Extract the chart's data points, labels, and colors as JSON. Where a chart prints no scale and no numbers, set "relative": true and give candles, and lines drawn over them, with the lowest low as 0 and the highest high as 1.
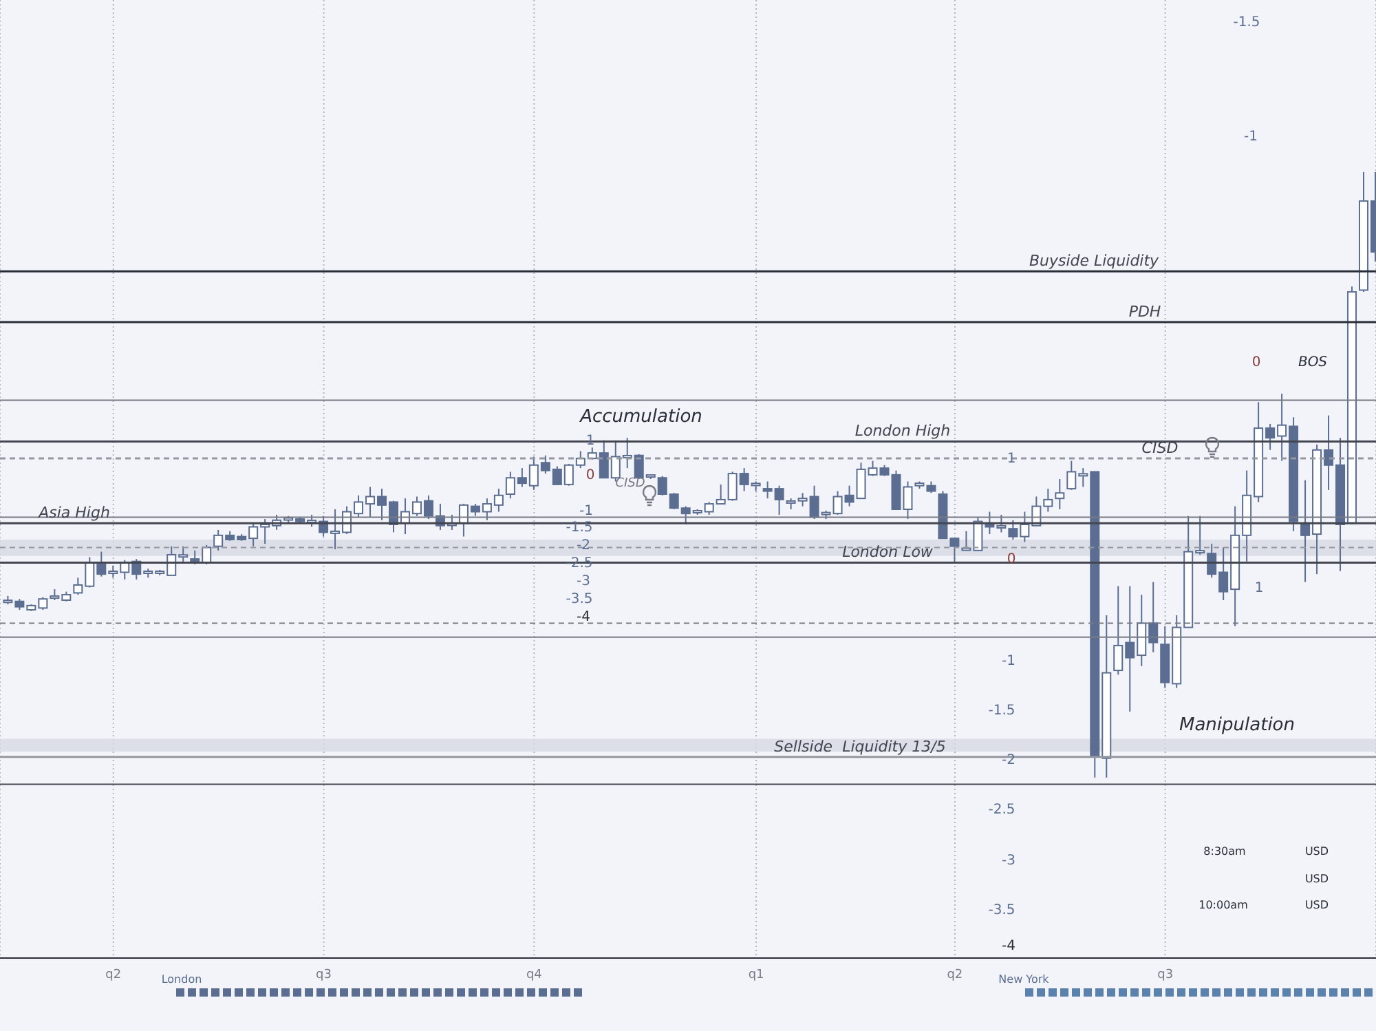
{
  "chart_data": {
    "type": "candlestick",
    "relative": true,
    "color": "#5b6e91",
    "grid": "x",
    "categories": [
      null,
      null,
      null,
      null,
      null,
      null,
      null,
      null,
      null,
      "q2",
      null,
      null,
      null,
      null,
      null,
      null,
      null,
      null,
      null,
      null,
      null,
      null,
      null,
      null,
      null,
      null,
      null,
      "q3",
      null,
      null,
      null,
      null,
      null,
      null,
      null,
      null,
      null,
      null,
      null,
      null,
      null,
      null,
      null,
      null,
      null,
      "q4",
      null,
      null,
      null,
      null,
      null,
      null,
      null,
      null,
      null,
      null,
      null,
      null,
      null,
      null,
      null,
      null,
      null,
      null,
      "q1",
      null,
      null,
      null,
      null,
      null,
      null,
      null,
      null,
      null,
      null,
      null,
      null,
      null,
      null,
      null,
      null,
      "q2",
      null,
      null,
      null,
      null,
      null,
      null,
      null,
      null,
      null,
      null,
      null,
      null,
      null,
      null,
      null,
      null,
      null,
      "q3",
      null,
      null,
      null,
      null,
      null,
      null,
      null,
      null,
      null,
      null,
      null,
      null,
      null,
      null,
      null,
      null,
      null,
      null
    ],
    "ohlc": [
      [
        0.291,
        0.3,
        0.286,
        0.291
      ],
      [
        0.291,
        0.295,
        0.277,
        0.282
      ],
      [
        0.277,
        0.286,
        0.275,
        0.284
      ],
      [
        0.28,
        0.298,
        0.277,
        0.295
      ],
      [
        0.298,
        0.311,
        0.293,
        0.298
      ],
      [
        0.293,
        0.307,
        0.291,
        0.302
      ],
      [
        0.305,
        0.33,
        0.302,
        0.318
      ],
      [
        0.316,
        0.364,
        0.314,
        0.355
      ],
      [
        0.352,
        0.373,
        0.332,
        0.336
      ],
      [
        0.339,
        0.35,
        0.33,
        0.339
      ],
      [
        0.339,
        0.359,
        0.327,
        0.355
      ],
      [
        0.357,
        0.361,
        0.327,
        0.336
      ],
      [
        0.339,
        0.345,
        0.33,
        0.339
      ],
      [
        0.339,
        0.343,
        0.334,
        0.339
      ],
      [
        0.334,
        0.382,
        0.334,
        0.368
      ],
      [
        0.366,
        0.382,
        0.355,
        0.366
      ],
      [
        0.361,
        0.375,
        0.352,
        0.355
      ],
      [
        0.355,
        0.384,
        0.352,
        0.38
      ],
      [
        0.382,
        0.409,
        0.375,
        0.4
      ],
      [
        0.4,
        0.407,
        0.391,
        0.393
      ],
      [
        0.398,
        0.402,
        0.391,
        0.393
      ],
      [
        0.395,
        0.42,
        0.382,
        0.414
      ],
      [
        0.414,
        0.427,
        0.386,
        0.418
      ],
      [
        0.416,
        0.434,
        0.409,
        0.425
      ],
      [
        0.425,
        0.432,
        0.42,
        0.427
      ],
      [
        0.427,
        0.43,
        0.42,
        0.423
      ],
      [
        0.423,
        0.434,
        0.414,
        0.423
      ],
      [
        0.423,
        0.432,
        0.398,
        0.405
      ],
      [
        0.405,
        0.443,
        0.377,
        0.405
      ],
      [
        0.405,
        0.448,
        0.402,
        0.439
      ],
      [
        0.436,
        0.466,
        0.43,
        0.455
      ],
      [
        0.452,
        0.48,
        0.43,
        0.464
      ],
      [
        0.464,
        0.477,
        0.425,
        0.45
      ],
      [
        0.455,
        0.457,
        0.405,
        0.418
      ],
      [
        0.42,
        0.461,
        0.402,
        0.439
      ],
      [
        0.436,
        0.464,
        0.432,
        0.455
      ],
      [
        0.457,
        0.466,
        0.427,
        0.432
      ],
      [
        0.432,
        0.452,
        0.409,
        0.416
      ],
      [
        0.418,
        0.434,
        0.409,
        0.418
      ],
      [
        0.42,
        0.452,
        0.398,
        0.45
      ],
      [
        0.448,
        0.452,
        0.432,
        0.439
      ],
      [
        0.439,
        0.461,
        0.425,
        0.452
      ],
      [
        0.45,
        0.477,
        0.439,
        0.466
      ],
      [
        0.468,
        0.505,
        0.461,
        0.495
      ],
      [
        0.495,
        0.511,
        0.48,
        0.486
      ],
      [
        0.482,
        0.53,
        0.475,
        0.516
      ],
      [
        0.52,
        0.532,
        0.502,
        0.507
      ],
      [
        0.509,
        0.514,
        0.484,
        0.484
      ],
      [
        0.484,
        0.518,
        0.482,
        0.516
      ],
      [
        0.516,
        0.539,
        0.511,
        0.527
      ],
      [
        0.527,
        0.545,
        0.525,
        0.536
      ],
      [
        0.536,
        0.557,
        0.495,
        0.495
      ],
      [
        0.495,
        0.557,
        0.489,
        0.53
      ],
      [
        0.53,
        0.561,
        0.511,
        0.53
      ],
      [
        0.532,
        0.534,
        0.493,
        0.495
      ],
      [
        0.498,
        0.5,
        0.493,
        0.498
      ],
      [
        0.495,
        0.498,
        0.466,
        0.468
      ],
      [
        0.468,
        0.47,
        0.443,
        0.445
      ],
      [
        0.445,
        0.448,
        0.418,
        0.436
      ],
      [
        0.439,
        0.443,
        0.434,
        0.439
      ],
      [
        0.439,
        0.455,
        0.434,
        0.452
      ],
      [
        0.452,
        0.484,
        0.452,
        0.459
      ],
      [
        0.459,
        0.505,
        0.457,
        0.502
      ],
      [
        0.502,
        0.511,
        0.473,
        0.484
      ],
      [
        0.484,
        0.489,
        0.473,
        0.484
      ],
      [
        0.477,
        0.489,
        0.461,
        0.473
      ],
      [
        0.477,
        0.482,
        0.434,
        0.459
      ],
      [
        0.455,
        0.461,
        0.443,
        0.455
      ],
      [
        0.457,
        0.47,
        0.448,
        0.461
      ],
      [
        0.464,
        0.482,
        0.427,
        0.43
      ],
      [
        0.436,
        0.441,
        0.427,
        0.436
      ],
      [
        0.436,
        0.473,
        0.434,
        0.464
      ],
      [
        0.466,
        0.482,
        0.448,
        0.455
      ],
      [
        0.461,
        0.52,
        0.461,
        0.509
      ],
      [
        0.5,
        0.523,
        0.498,
        0.511
      ],
      [
        0.511,
        0.516,
        0.498,
        0.5
      ],
      [
        0.5,
        0.507,
        0.443,
        0.443
      ],
      [
        0.443,
        0.489,
        0.427,
        0.48
      ],
      [
        0.482,
        0.489,
        0.477,
        0.486
      ],
      [
        0.482,
        0.489,
        0.47,
        0.473
      ],
      [
        0.468,
        0.473,
        0.395,
        0.395
      ],
      [
        0.395,
        0.395,
        0.355,
        0.382
      ],
      [
        0.377,
        0.407,
        0.375,
        0.377
      ],
      [
        0.375,
        0.43,
        0.375,
        0.423
      ],
      [
        0.42,
        0.439,
        0.402,
        0.414
      ],
      [
        0.414,
        0.434,
        0.405,
        0.414
      ],
      [
        0.411,
        0.425,
        0.393,
        0.398
      ],
      [
        0.398,
        0.439,
        0.389,
        0.418
      ],
      [
        0.416,
        0.464,
        0.416,
        0.448
      ],
      [
        0.448,
        0.477,
        0.439,
        0.459
      ],
      [
        0.461,
        0.493,
        0.443,
        0.47
      ],
      [
        0.477,
        0.523,
        0.475,
        0.505
      ],
      [
        0.5,
        0.511,
        0.48,
        0.5
      ],
      [
        0.505,
        0.505,
        0,
        0.034
      ],
      [
        0.032,
        0.268,
        0,
        0.173
      ],
      [
        0.177,
        0.316,
        0.17,
        0.218
      ],
      [
        0.223,
        0.316,
        0.109,
        0.198
      ],
      [
        0.202,
        0.302,
        0.184,
        0.255
      ],
      [
        0.255,
        0.323,
        0.207,
        0.223
      ],
      [
        0.22,
        0.25,
        0.148,
        0.157
      ],
      [
        0.155,
        0.268,
        0.148,
        0.248
      ],
      [
        0.248,
        0.432,
        0.248,
        0.373
      ],
      [
        0.373,
        0.432,
        0.368,
        0.373
      ],
      [
        0.37,
        0.386,
        0.33,
        0.336
      ],
      [
        0.339,
        0.38,
        0.293,
        0.307
      ],
      [
        0.311,
        0.448,
        0.25,
        0.4
      ],
      [
        0.4,
        0.507,
        0.357,
        0.466
      ],
      [
        0.464,
        0.62,
        0.455,
        0.577
      ],
      [
        0.577,
        0.584,
        0.541,
        0.561
      ],
      [
        0.564,
        0.634,
        0.523,
        0.582
      ],
      [
        0.58,
        0.595,
        0.407,
        0.423
      ],
      [
        0.42,
        0.491,
        0.323,
        0.4
      ],
      [
        0.402,
        0.55,
        0.336,
        0.541
      ],
      [
        0.541,
        0.598,
        0.475,
        0.516
      ],
      [
        0.516,
        0.561,
        0.341,
        0.418
      ],
      [
        0.42,
        0.811,
        0.418,
        0.802
      ],
      [
        0.805,
        1,
        0.802,
        0.952
      ],
      [
        0.952,
        1,
        0.852,
        0.868
      ]
    ],
    "ref_lines": [
      {
        "axis": "y",
        "value": 0.836,
        "label": "Buyside Liquidity",
        "color": "#2a2e39"
      },
      {
        "axis": "y",
        "value": 0.752,
        "label": "PDH",
        "color": "#2a2e39"
      },
      {
        "axis": "y",
        "value": 0.623,
        "color": "#787b86"
      },
      {
        "axis": "y",
        "value": 0.555,
        "label": "London High",
        "color": "#434651"
      },
      {
        "axis": "y",
        "value": 0.527,
        "label": "CISD",
        "color": "#9598a1",
        "line_style": "dashed"
      },
      {
        "axis": "y",
        "value": 0.43,
        "color": "#787b86"
      },
      {
        "axis": "y",
        "value": 0.42,
        "label": "Asia High",
        "color": "#434651"
      },
      {
        "axis": "y",
        "value": 0.38,
        "color": "#9598a1",
        "line_style": "dashed"
      },
      {
        "axis": "y",
        "value": 0.355,
        "label": "London Low",
        "color": "#434651"
      },
      {
        "axis": "y",
        "value": 0.255,
        "color": "#787b86",
        "line_style": "dashed"
      },
      {
        "axis": "y",
        "value": 0.232,
        "color": "#787b86"
      },
      {
        "axis": "y",
        "value": 0.034,
        "label": "Sellside  Liquidity 13/5",
        "color": "#9598a1"
      },
      {
        "axis": "y",
        "value": -0.011,
        "color": "#434651"
      }
    ],
    "bands": [
      {
        "axis": "y",
        "from": 0.366,
        "to": 0.393,
        "color": "#d6dae4"
      },
      {
        "axis": "y",
        "from": 0.043,
        "to": 0.064,
        "color": "#d6dae4"
      }
    ],
    "annotations": [
      "Accumulation",
      "Manipulation",
      "BOS",
      "London",
      "New York",
      "8:30am",
      "10:00am",
      "USD",
      "USD",
      "USD",
      "CISD",
      "1",
      "0",
      "-1",
      "-1.5",
      "-2",
      "-2.5",
      "-3",
      "-3.5",
      "-4",
      "1",
      "0",
      "-1",
      "-1.5",
      "-2",
      "-2.5",
      "-3",
      "-3.5",
      "-4",
      "-1.5",
      "-1",
      "0",
      "1"
    ]
  }
}
